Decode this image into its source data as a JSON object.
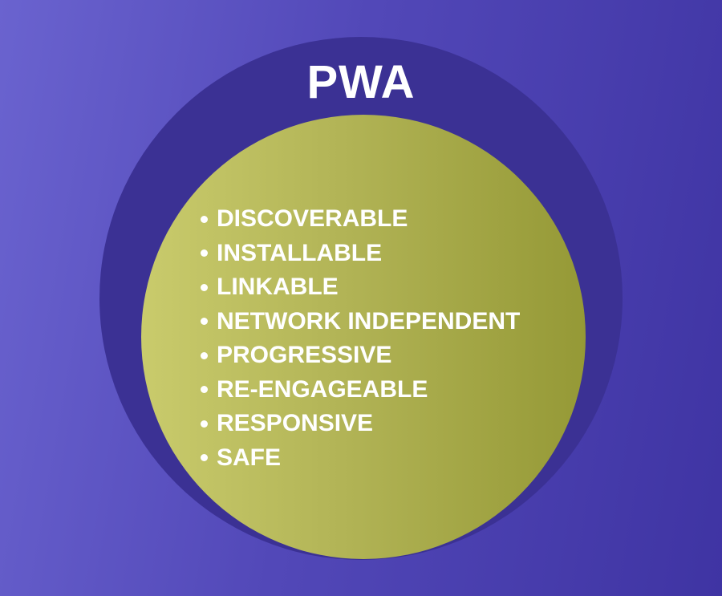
{
  "title": "PWA",
  "features": [
    "DISCOVERABLE",
    "INSTALLABLE",
    "LINKABLE",
    "NETWORK INDEPENDENT",
    "PROGRESSIVE",
    "RE-ENGAGEABLE",
    "RESPONSIVE",
    "SAFE"
  ],
  "colors": {
    "background": "#5248b8",
    "outer_circle": "#3b3194",
    "inner_circle": "#b2b456",
    "text": "#ffffff"
  }
}
